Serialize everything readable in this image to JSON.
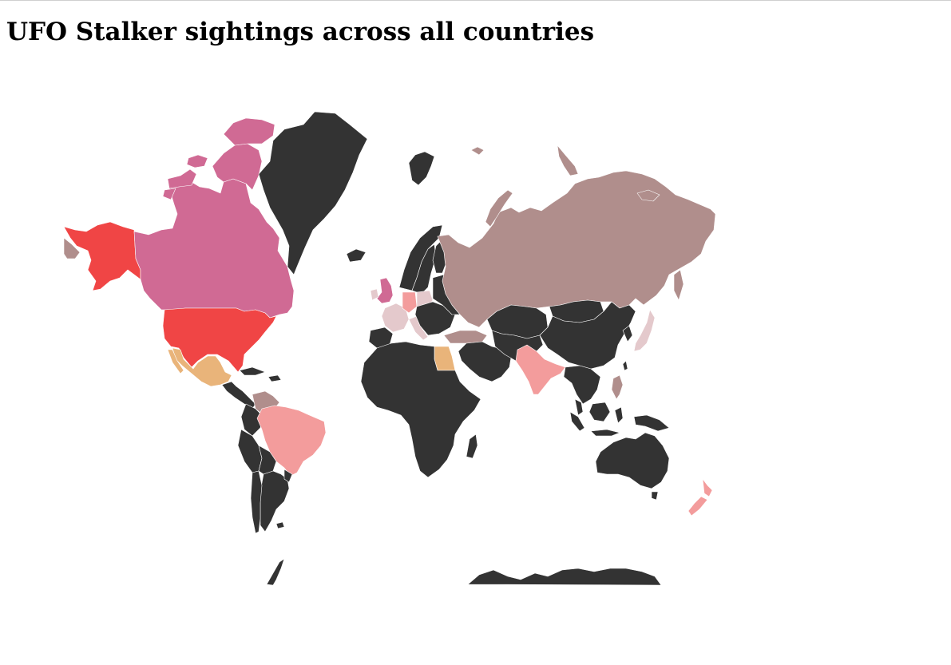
{
  "title": "UFO Stalker sightings across all countries",
  "palette": {
    "none": "#333333",
    "very_low": "#e4c9cc",
    "low": "#b08e8c",
    "medium_low": "#f39c9c",
    "medium": "#e9b47a",
    "high": "#d06a94",
    "very_high": "#f04545"
  },
  "countries": [
    {
      "name": "United States",
      "level": "very_high"
    },
    {
      "name": "Canada",
      "level": "high"
    },
    {
      "name": "United Kingdom",
      "level": "high"
    },
    {
      "name": "Mexico",
      "level": "medium"
    },
    {
      "name": "Egypt",
      "level": "medium"
    },
    {
      "name": "Brazil",
      "level": "medium_low"
    },
    {
      "name": "India",
      "level": "medium_low"
    },
    {
      "name": "Germany",
      "level": "medium_low"
    },
    {
      "name": "New Zealand",
      "level": "medium_low"
    },
    {
      "name": "Russia",
      "level": "low"
    },
    {
      "name": "Venezuela",
      "level": "low"
    },
    {
      "name": "Turkey",
      "level": "low"
    },
    {
      "name": "Philippines",
      "level": "low"
    },
    {
      "name": "France",
      "level": "very_low"
    },
    {
      "name": "Poland",
      "level": "very_low"
    },
    {
      "name": "Japan",
      "level": "very_low"
    },
    {
      "name": "Italy",
      "level": "very_low"
    },
    {
      "name": "Ireland",
      "level": "very_low"
    }
  ]
}
